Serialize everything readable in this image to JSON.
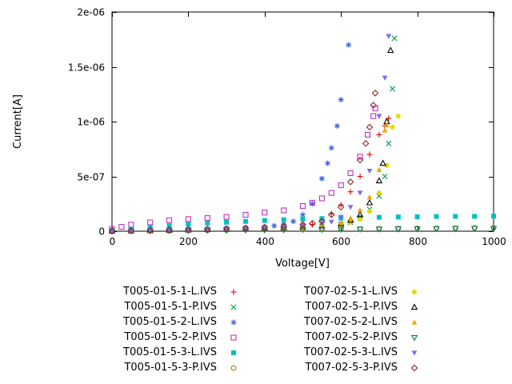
{
  "chart_data": {
    "type": "scatter",
    "title": "",
    "xlabel": "Voltage[V]",
    "ylabel": "Current[A]",
    "xlim": [
      0,
      1000
    ],
    "ylim": [
      0,
      2e-06
    ],
    "xticks": [
      0,
      200,
      400,
      600,
      800,
      1000
    ],
    "xtick_labels": [
      "0",
      "200",
      "400",
      "600",
      "800",
      "1000"
    ],
    "yticks": [
      0,
      5e-07,
      1e-06,
      1.5e-06,
      2e-06
    ],
    "ytick_labels": [
      "0",
      "5e-07",
      "1e-06",
      "1.5e-06",
      "2e-06"
    ],
    "grid": false,
    "legend_position": "bottom",
    "series": [
      {
        "name": "T005-01-5-1-L.IVS",
        "marker": "plus",
        "color": "#dc0000",
        "points": [
          [
            0,
            2e-09
          ],
          [
            50,
            4e-09
          ],
          [
            100,
            7e-09
          ],
          [
            150,
            9e-09
          ],
          [
            200,
            1.1e-08
          ],
          [
            250,
            1.3e-08
          ],
          [
            300,
            1.5e-08
          ],
          [
            350,
            1.7e-08
          ],
          [
            400,
            2e-08
          ],
          [
            450,
            2.5e-08
          ],
          [
            500,
            4e-08
          ],
          [
            525,
            6e-08
          ],
          [
            550,
            1e-07
          ],
          [
            575,
            1.6e-07
          ],
          [
            600,
            2.4e-07
          ],
          [
            625,
            3.6e-07
          ],
          [
            650,
            5e-07
          ],
          [
            675,
            7e-07
          ],
          [
            700,
            8.8e-07
          ],
          [
            715,
            9.6e-07
          ],
          [
            725,
            1.03e-06
          ]
        ]
      },
      {
        "name": "T005-01-5-1-P.IVS",
        "marker": "cross",
        "color": "#00a040",
        "points": [
          [
            0,
            2e-09
          ],
          [
            50,
            4e-09
          ],
          [
            100,
            6e-09
          ],
          [
            150,
            8e-09
          ],
          [
            200,
            1e-08
          ],
          [
            250,
            1.2e-08
          ],
          [
            300,
            1.5e-08
          ],
          [
            350,
            1.8e-08
          ],
          [
            400,
            2.2e-08
          ],
          [
            450,
            2.8e-08
          ],
          [
            500,
            3.5e-08
          ],
          [
            550,
            4.5e-08
          ],
          [
            600,
            6e-08
          ],
          [
            625,
            8e-08
          ],
          [
            650,
            1.2e-07
          ],
          [
            675,
            2e-07
          ],
          [
            700,
            3.2e-07
          ],
          [
            715,
            5e-07
          ],
          [
            725,
            8e-07
          ],
          [
            735,
            1.3e-06
          ],
          [
            740,
            1.76e-06
          ]
        ]
      },
      {
        "name": "T005-01-5-2-L.IVS",
        "marker": "asterisk",
        "color": "#4169e1",
        "points": [
          [
            0,
            2e-09
          ],
          [
            50,
            5e-09
          ],
          [
            100,
            8e-09
          ],
          [
            150,
            1.2e-08
          ],
          [
            200,
            1.6e-08
          ],
          [
            250,
            2e-08
          ],
          [
            300,
            2.5e-08
          ],
          [
            350,
            3.2e-08
          ],
          [
            400,
            4e-08
          ],
          [
            425,
            5e-08
          ],
          [
            450,
            6.5e-08
          ],
          [
            475,
            9e-08
          ],
          [
            500,
            1.5e-07
          ],
          [
            525,
            2.5e-07
          ],
          [
            550,
            4.8e-07
          ],
          [
            565,
            6.2e-07
          ],
          [
            575,
            7.6e-07
          ],
          [
            590,
            9.6e-07
          ],
          [
            600,
            1.2e-06
          ],
          [
            620,
            1.7e-06
          ]
        ]
      },
      {
        "name": "T005-01-5-2-P.IVS",
        "marker": "square-open",
        "color": "#c030c0",
        "points": [
          [
            0,
            2e-08
          ],
          [
            25,
            4e-08
          ],
          [
            50,
            6e-08
          ],
          [
            100,
            8e-08
          ],
          [
            150,
            1e-07
          ],
          [
            200,
            1.1e-07
          ],
          [
            250,
            1.2e-07
          ],
          [
            300,
            1.3e-07
          ],
          [
            350,
            1.5e-07
          ],
          [
            400,
            1.7e-07
          ],
          [
            450,
            1.9e-07
          ],
          [
            500,
            2.3e-07
          ],
          [
            525,
            2.6e-07
          ],
          [
            550,
            3e-07
          ],
          [
            575,
            3.5e-07
          ],
          [
            600,
            4.2e-07
          ],
          [
            625,
            5.3e-07
          ],
          [
            650,
            6.8e-07
          ],
          [
            670,
            8.8e-07
          ],
          [
            685,
            1.05e-06
          ],
          [
            690,
            1.12e-06
          ]
        ]
      },
      {
        "name": "T005-01-5-3-L.IVS",
        "marker": "square-filled",
        "color": "#00c0c0",
        "points": [
          [
            0,
            5e-09
          ],
          [
            50,
            2e-08
          ],
          [
            100,
            3.5e-08
          ],
          [
            150,
            5e-08
          ],
          [
            200,
            6.2e-08
          ],
          [
            250,
            7.2e-08
          ],
          [
            300,
            8.2e-08
          ],
          [
            350,
            9e-08
          ],
          [
            400,
            9.8e-08
          ],
          [
            450,
            1.05e-07
          ],
          [
            500,
            1.1e-07
          ],
          [
            550,
            1.15e-07
          ],
          [
            600,
            1.2e-07
          ],
          [
            650,
            1.24e-07
          ],
          [
            700,
            1.27e-07
          ],
          [
            750,
            1.3e-07
          ],
          [
            800,
            1.32e-07
          ],
          [
            850,
            1.34e-07
          ],
          [
            900,
            1.35e-07
          ],
          [
            950,
            1.36e-07
          ],
          [
            1000,
            1.37e-07
          ]
        ]
      },
      {
        "name": "T005-01-5-3-P.IVS",
        "marker": "circle-open",
        "color": "#9a7a00",
        "points": [
          [
            0,
            2e-09
          ],
          [
            50,
            3.5e-09
          ],
          [
            100,
            5e-09
          ],
          [
            150,
            6.5e-09
          ],
          [
            200,
            8e-09
          ],
          [
            250,
            9.5e-09
          ],
          [
            300,
            1.1e-08
          ],
          [
            350,
            1.25e-08
          ],
          [
            400,
            1.4e-08
          ],
          [
            450,
            1.55e-08
          ],
          [
            500,
            1.7e-08
          ],
          [
            550,
            1.85e-08
          ],
          [
            600,
            2e-08
          ],
          [
            650,
            2.15e-08
          ],
          [
            700,
            2.3e-08
          ],
          [
            750,
            2.45e-08
          ],
          [
            800,
            2.6e-08
          ],
          [
            850,
            2.7e-08
          ],
          [
            900,
            2.8e-08
          ],
          [
            950,
            2.9e-08
          ],
          [
            1000,
            3e-08
          ]
        ]
      },
      {
        "name": "T007-02-5-1-L.IVS",
        "marker": "circle-filled",
        "color": "#e8d800",
        "points": [
          [
            0,
            2e-09
          ],
          [
            50,
            4e-09
          ],
          [
            100,
            6e-09
          ],
          [
            150,
            9e-09
          ],
          [
            200,
            1.2e-08
          ],
          [
            250,
            1.5e-08
          ],
          [
            300,
            1.9e-08
          ],
          [
            350,
            2.3e-08
          ],
          [
            400,
            2.8e-08
          ],
          [
            450,
            3.3e-08
          ],
          [
            500,
            3.8e-08
          ],
          [
            550,
            4.5e-08
          ],
          [
            600,
            6e-08
          ],
          [
            625,
            8e-08
          ],
          [
            650,
            1.1e-07
          ],
          [
            675,
            1.8e-07
          ],
          [
            700,
            3.5e-07
          ],
          [
            720,
            6e-07
          ],
          [
            735,
            9.5e-07
          ],
          [
            750,
            1.05e-06
          ]
        ]
      },
      {
        "name": "T007-02-5-1-P.IVS",
        "marker": "triangle-up-open",
        "color": "#000000",
        "points": [
          [
            0,
            2e-09
          ],
          [
            50,
            4e-09
          ],
          [
            100,
            7e-09
          ],
          [
            150,
            1e-08
          ],
          [
            200,
            1.3e-08
          ],
          [
            250,
            1.6e-08
          ],
          [
            300,
            2e-08
          ],
          [
            350,
            2.4e-08
          ],
          [
            400,
            2.9e-08
          ],
          [
            450,
            3.4e-08
          ],
          [
            500,
            4e-08
          ],
          [
            550,
            5e-08
          ],
          [
            600,
            7e-08
          ],
          [
            625,
            1e-07
          ],
          [
            650,
            1.5e-07
          ],
          [
            675,
            2.6e-07
          ],
          [
            700,
            4.6e-07
          ],
          [
            710,
            6.2e-07
          ],
          [
            720,
            1e-06
          ],
          [
            730,
            1.65e-06
          ]
        ]
      },
      {
        "name": "T007-02-5-2-L.IVS",
        "marker": "triangle-up-filled",
        "color": "#f0a000",
        "points": [
          [
            0,
            2e-09
          ],
          [
            50,
            4e-09
          ],
          [
            100,
            6e-09
          ],
          [
            150,
            9e-09
          ],
          [
            200,
            1.2e-08
          ],
          [
            250,
            1.5e-08
          ],
          [
            300,
            1.9e-08
          ],
          [
            350,
            2.3e-08
          ],
          [
            400,
            2.8e-08
          ],
          [
            450,
            3.4e-08
          ],
          [
            500,
            4.2e-08
          ],
          [
            550,
            5.5e-08
          ],
          [
            600,
            8e-08
          ],
          [
            625,
            1.2e-07
          ],
          [
            650,
            1.9e-07
          ],
          [
            675,
            3.1e-07
          ],
          [
            700,
            5.6e-07
          ],
          [
            715,
            9.2e-07
          ],
          [
            720,
            9.7e-07
          ]
        ]
      },
      {
        "name": "T007-02-5-2-P.IVS",
        "marker": "triangle-down-open",
        "color": "#008060",
        "points": [
          [
            0,
            1e-09
          ],
          [
            50,
            2e-09
          ],
          [
            100,
            3.5e-09
          ],
          [
            150,
            5e-09
          ],
          [
            200,
            6.5e-09
          ],
          [
            250,
            8e-09
          ],
          [
            300,
            9.5e-09
          ],
          [
            350,
            1.1e-08
          ],
          [
            400,
            1.2e-08
          ],
          [
            450,
            1.35e-08
          ],
          [
            500,
            1.5e-08
          ],
          [
            550,
            1.6e-08
          ],
          [
            600,
            1.7e-08
          ],
          [
            650,
            1.8e-08
          ],
          [
            700,
            1.9e-08
          ],
          [
            750,
            2e-08
          ],
          [
            800,
            2.1e-08
          ],
          [
            850,
            2.2e-08
          ],
          [
            900,
            2.3e-08
          ],
          [
            950,
            2.4e-08
          ],
          [
            1000,
            2.5e-08
          ]
        ]
      },
      {
        "name": "T007-02-5-3-L.IVS",
        "marker": "triangle-down-filled",
        "color": "#7b68ee",
        "points": [
          [
            0,
            2e-09
          ],
          [
            50,
            5e-09
          ],
          [
            100,
            8e-09
          ],
          [
            150,
            1.2e-08
          ],
          [
            200,
            1.6e-08
          ],
          [
            250,
            2e-08
          ],
          [
            300,
            2.5e-08
          ],
          [
            350,
            3e-08
          ],
          [
            400,
            3.6e-08
          ],
          [
            450,
            4.4e-08
          ],
          [
            500,
            5.5e-08
          ],
          [
            550,
            7e-08
          ],
          [
            575,
            8.5e-08
          ],
          [
            600,
            1.3e-07
          ],
          [
            625,
            2.2e-07
          ],
          [
            650,
            3.5e-07
          ],
          [
            675,
            5.5e-07
          ],
          [
            700,
            1.05e-06
          ],
          [
            715,
            1.4e-06
          ],
          [
            725,
            1.78e-06
          ]
        ]
      },
      {
        "name": "T007-02-5-3-P.IVS",
        "marker": "diamond-open",
        "color": "#8b2525",
        "points": [
          [
            0,
            2e-09
          ],
          [
            50,
            4e-09
          ],
          [
            100,
            7e-09
          ],
          [
            150,
            1e-08
          ],
          [
            200,
            1.4e-08
          ],
          [
            250,
            1.8e-08
          ],
          [
            300,
            2.3e-08
          ],
          [
            350,
            2.9e-08
          ],
          [
            400,
            3.6e-08
          ],
          [
            450,
            4.6e-08
          ],
          [
            500,
            6e-08
          ],
          [
            525,
            7.2e-08
          ],
          [
            550,
            9e-08
          ],
          [
            575,
            1.5e-07
          ],
          [
            600,
            2.2e-07
          ],
          [
            625,
            4.5e-07
          ],
          [
            650,
            6.5e-07
          ],
          [
            665,
            8e-07
          ],
          [
            675,
            9.5e-07
          ],
          [
            685,
            1.15e-06
          ],
          [
            690,
            1.26e-06
          ]
        ]
      }
    ]
  }
}
